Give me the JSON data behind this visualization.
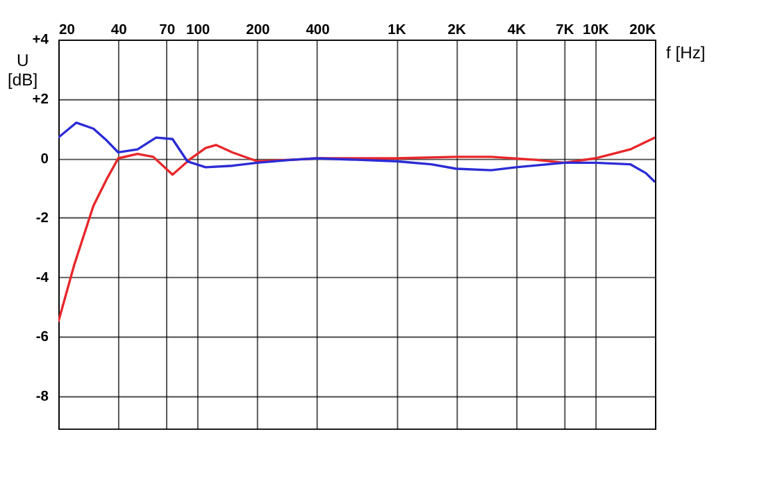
{
  "chart_data": {
    "type": "line",
    "xlabel": "f [Hz]",
    "ylabel": "U [dB]",
    "log": "x",
    "grid": true,
    "line_style": "solid",
    "marker": "none",
    "xlim": [
      20,
      20000
    ],
    "ylim": [
      -9.1,
      4
    ],
    "xticks": [
      20,
      40,
      70,
      100,
      200,
      400,
      {
        "value": 1000,
        "label": "1K"
      },
      {
        "value": 2000,
        "label": "2K"
      },
      {
        "value": 4000,
        "label": "4K"
      },
      {
        "value": 7000,
        "label": "7K"
      },
      {
        "value": 10000,
        "label": "10K"
      },
      {
        "value": 20000,
        "label": "20K"
      }
    ],
    "yticks": [
      {
        "value": 4,
        "label": "+4"
      },
      {
        "value": 2,
        "label": "+2"
      },
      0,
      -2,
      -4,
      -6,
      -8
    ],
    "series": [
      {
        "color": "#e8262a",
        "x": [
          20,
          24,
          30,
          35,
          40,
          50,
          60,
          75,
          93,
          110,
          124,
          150,
          200,
          300,
          400,
          1000,
          2000,
          3000,
          5000,
          7000,
          10000,
          15000,
          20000
        ],
        "values": [
          -5.5,
          -3.6,
          -1.6,
          -0.7,
          0,
          0.15,
          0.05,
          -0.55,
          0,
          0.35,
          0.45,
          0.2,
          -0.1,
          -0.05,
          0,
          0,
          0.05,
          0.05,
          -0.05,
          -0.15,
          0,
          0.3,
          0.7
        ]
      },
      {
        "color": "#2b2bd6",
        "x": [
          20,
          24.6,
          30,
          35,
          40,
          50,
          62,
          75,
          89,
          110,
          150,
          200,
          300,
          400,
          1000,
          1500,
          2000,
          3000,
          4000,
          7000,
          10000,
          15000,
          18000,
          20000
        ],
        "values": [
          0.7,
          1.2,
          1.0,
          0.6,
          0.2,
          0.3,
          0.7,
          0.65,
          -0.1,
          -0.3,
          -0.25,
          -0.15,
          -0.05,
          0,
          -0.1,
          -0.2,
          -0.35,
          -0.4,
          -0.3,
          -0.15,
          -0.15,
          -0.2,
          -0.5,
          -0.8
        ]
      }
    ]
  }
}
